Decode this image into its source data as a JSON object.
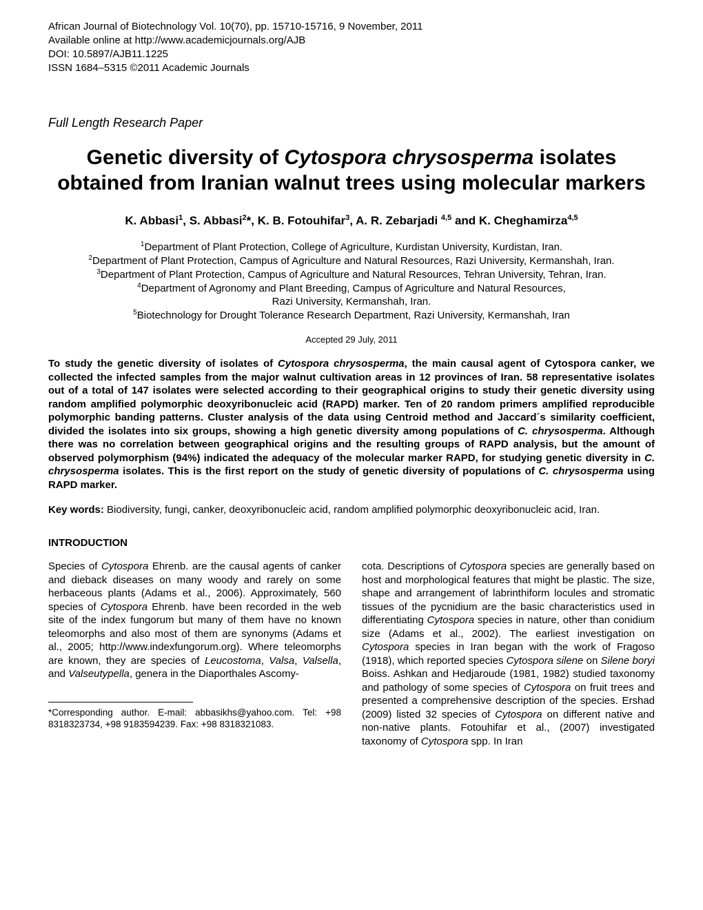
{
  "header": {
    "journal_line": "African Journal of Biotechnology Vol. 10(70), pp. 15710-15716, 9 November, 2011",
    "url_line": "Available online at http://www.academicjournals.org/AJB",
    "doi_line": "DOI: 10.5897/AJB11.1225",
    "issn_line": "ISSN 1684–5315 ©2011 Academic Journals"
  },
  "paper_type": "Full Length Research Paper",
  "title": {
    "part1": "Genetic diversity of ",
    "italic1": "Cytospora chrysosperma",
    "part2": " isolates obtained from Iranian walnut trees using molecular markers"
  },
  "authors": {
    "a1_name": "K. Abbasi",
    "a1_sup": "1",
    "a2_name": ", S. Abbasi",
    "a2_sup": "2",
    "a2_post": "*",
    "a3_name": ", K. B. Fotouhifar",
    "a3_sup": "3",
    "a4_name": ", A. R. Zebarjadi ",
    "a4_sup": "4,5",
    "a5_name": " and K. Cheghamirza",
    "a5_sup": "4,5"
  },
  "affiliations": {
    "aff1_sup": "1",
    "aff1_text": "Department of Plant Protection, College of Agriculture, Kurdistan University, Kurdistan, Iran.",
    "aff2_sup": "2",
    "aff2_text": "Department of Plant Protection, Campus of Agriculture and Natural Resources, Razi University, Kermanshah, Iran.",
    "aff3_sup": "3",
    "aff3_text": "Department of Plant Protection, Campus of Agriculture and Natural Resources, Tehran University, Tehran, Iran.",
    "aff4_sup": "4",
    "aff4_text": "Department of Agronomy and Plant Breeding, Campus of Agriculture and Natural Resources,",
    "aff4_text2": "Razi University, Kermanshah, Iran.",
    "aff5_sup": "5",
    "aff5_text": "Biotechnology for Drought Tolerance Research Department, Razi University, Kermanshah, Iran"
  },
  "accepted": "Accepted 29 July, 2011",
  "abstract": {
    "p1": "To study the genetic diversity of isolates of ",
    "i1": "Cytospora chrysosperma",
    "p2": ", the main causal agent of Cytospora canker, we collected the infected samples from the major walnut cultivation areas in 12 provinces of Iran. 58 representative isolates out of a total of 147 isolates were selected according to their geographical origins to study their genetic diversity using random amplified polymorphic deoxyribonucleic acid (RAPD) marker. Ten of 20 random primers amplified reproducible polymorphic banding patterns. Cluster analysis of the data using Centroid method and Jaccard´s similarity coefficient, divided the isolates into six groups, showing a high genetic diversity among populations of ",
    "i2": "C. chrysosperma",
    "p3": ". Although there was no correlation between geographical origins and the resulting groups of RAPD analysis, but the amount of observed polymorphism (94%) indicated the adequacy of the molecular marker RAPD, for studying genetic diversity in ",
    "i3": "C. chrysosperma",
    "p4": " isolates. This is the first report on the study of genetic diversity of populations of ",
    "i4": "C. chrysosperma",
    "p5": " using RAPD marker."
  },
  "keywords": {
    "label": "Key words:",
    "text": " Biodiversity, fungi, canker, deoxyribonucleic acid, random amplified polymorphic deoxyribonucleic acid, Iran."
  },
  "introduction_heading": "INTRODUCTION",
  "col1": {
    "p1": "Species of ",
    "i1": "Cytospora",
    "p2": " Ehrenb. are the causal agents of canker and dieback diseases on many woody and rarely on some herbaceous plants (Adams et al., 2006). Approximately, 560 species of ",
    "i2": "Cytospora",
    "p3": " Ehrenb. have been recorded in the web site of the index fungorum but many of them have no known teleomorphs and also most of them are synonyms (Adams et al., 2005; http://www.indexfungorum.org). Where teleomorphs are known, they are species of ",
    "i3": "Leucostoma",
    "p4": ", ",
    "i4": "Valsa",
    "p5": ", ",
    "i5": "Valsella",
    "p6": ", and ",
    "i6": "Valseutypella",
    "p7": ", genera in the Diaporthales Ascomy-"
  },
  "col2": {
    "p1": "cota. Descriptions of ",
    "i1": "Cytospora",
    "p2": " species are generally based on host and morphological features that might be plastic. The size, shape and arrangement of labrinthiform locules and stromatic tissues of the pycnidium are the basic characteristics used in differentiating ",
    "i2": "Cytospora",
    "p3": " species in nature, other than conidium size (Adams et al., 2002). The earliest investigation on ",
    "i3": "Cytospora",
    "p4": " species in Iran began with the work of Fragoso (1918), which reported species ",
    "i4": "Cytospora silene",
    "p5": " on ",
    "i5": "Silene boryi",
    "p6": " Boiss. Ashkan and Hedjaroude (1981, 1982) studied taxonomy and pathology of some species of ",
    "i6": "Cytospora",
    "p7": " on fruit trees and presented a comprehensive description of the species. Ershad (2009) listed 32 species of ",
    "i7": "Cytospora",
    "p8": " on different native and non-native plants. Fotouhifar et al., (2007) investigated taxonomy of ",
    "i8": "Cytospora",
    "p9": " spp. In Iran"
  },
  "footnote": "*Corresponding author. E-mail: abbasikhs@yahoo.com. Tel: +98 8318323734, +98 9183594239. Fax: +98 8318321083."
}
